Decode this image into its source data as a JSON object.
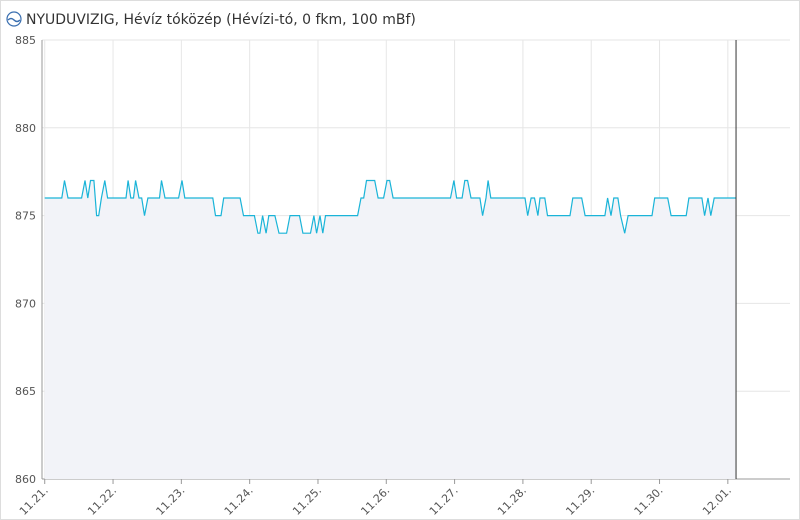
{
  "chart_data": {
    "type": "area",
    "title": "NYUDUVIZIG, Hévíz tóközép (Hévízi-tó, 0 fkm, 100 mBf)",
    "x": [
      0,
      0.25,
      0.29,
      0.34,
      0.54,
      0.59,
      0.63,
      0.67,
      0.72,
      0.76,
      0.79,
      0.83,
      0.88,
      0.92,
      1.19,
      1.22,
      1.26,
      1.3,
      1.33,
      1.38,
      1.42,
      1.46,
      1.51,
      1.68,
      1.71,
      1.76,
      1.96,
      2.01,
      2.05,
      2.46,
      2.5,
      2.58,
      2.62,
      2.86,
      2.91,
      3.07,
      3.12,
      3.15,
      3.19,
      3.24,
      3.28,
      3.37,
      3.43,
      3.54,
      3.59,
      3.73,
      3.78,
      3.89,
      3.94,
      3.98,
      4.03,
      4.07,
      4.11,
      4.58,
      4.63,
      4.67,
      4.71,
      4.83,
      4.88,
      4.96,
      5.01,
      5.05,
      5.1,
      5.94,
      5.99,
      6.03,
      6.11,
      6.15,
      6.19,
      6.24,
      6.37,
      6.41,
      6.46,
      6.49,
      6.53,
      7.03,
      7.07,
      7.12,
      7.17,
      7.22,
      7.25,
      7.32,
      7.36,
      7.69,
      7.73,
      7.86,
      7.91,
      8.2,
      8.24,
      8.29,
      8.33,
      8.39,
      8.43,
      8.49,
      8.54,
      8.89,
      8.93,
      9.12,
      9.17,
      9.39,
      9.43,
      9.62,
      9.66,
      9.71,
      9.75,
      9.8,
      10.12
    ],
    "series": [
      {
        "color": "#1ab4d8",
        "fill": "#f2f3f8",
        "values": [
          876,
          876,
          877,
          876,
          876,
          877,
          876,
          877,
          877,
          875,
          875,
          876,
          877,
          876,
          876,
          877,
          876,
          876,
          877,
          876,
          876,
          875,
          876,
          876,
          877,
          876,
          876,
          877,
          876,
          876,
          875,
          875,
          876,
          876,
          875,
          875,
          874,
          874,
          875,
          874,
          875,
          875,
          874,
          874,
          875,
          875,
          874,
          874,
          875,
          874,
          875,
          874,
          875,
          875,
          876,
          876,
          877,
          877,
          876,
          876,
          877,
          877,
          876,
          876,
          877,
          876,
          876,
          877,
          877,
          876,
          876,
          875,
          876,
          877,
          876,
          876,
          875,
          876,
          876,
          875,
          876,
          876,
          875,
          875,
          876,
          876,
          875,
          875,
          876,
          875,
          876,
          876,
          875,
          874,
          875,
          875,
          876,
          876,
          875,
          875,
          876,
          876,
          875,
          876,
          875,
          876,
          876
        ]
      }
    ],
    "xlim": [
      -0.04,
      10.91
    ],
    "xticks": [
      {
        "value": 0,
        "label": "11.21."
      },
      {
        "value": 1,
        "label": "11.22."
      },
      {
        "value": 2,
        "label": "11.23."
      },
      {
        "value": 3,
        "label": "11.24."
      },
      {
        "value": 4,
        "label": "11.25."
      },
      {
        "value": 5,
        "label": "11.26."
      },
      {
        "value": 6,
        "label": "11.27."
      },
      {
        "value": 7,
        "label": "11.28."
      },
      {
        "value": 8,
        "label": "11.29."
      },
      {
        "value": 9,
        "label": "11.30."
      },
      {
        "value": 10,
        "label": "12.01."
      }
    ],
    "ylim": [
      860,
      885
    ],
    "yticks": [
      860,
      865,
      870,
      875,
      880,
      885
    ],
    "grid": true
  }
}
